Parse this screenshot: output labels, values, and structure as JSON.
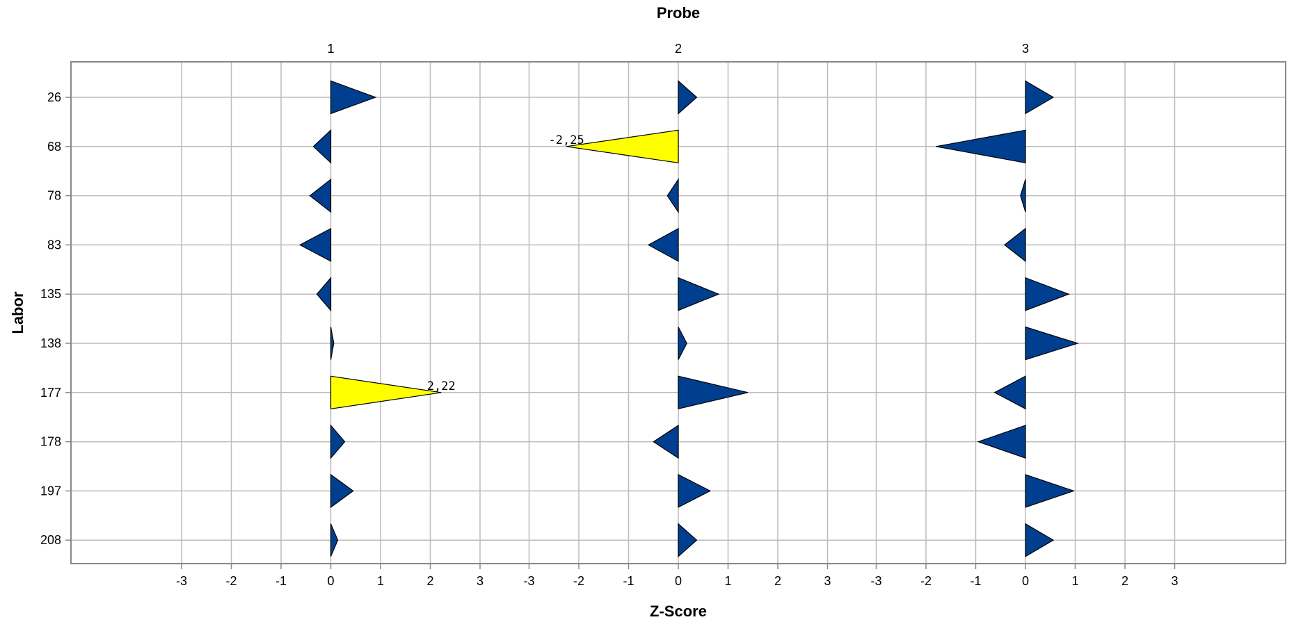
{
  "chart_data": {
    "type": "bar",
    "title": "",
    "top_title": "Probe",
    "xlabel": "Z-Score",
    "ylabel": "Labor",
    "xlim": [
      -3,
      3
    ],
    "x_ticks": [
      "-3",
      "-2",
      "-1",
      "0",
      "1",
      "2",
      "3"
    ],
    "grid": true,
    "categories": [
      "26",
      "68",
      "78",
      "83",
      "135",
      "138",
      "177",
      "178",
      "197",
      "208"
    ],
    "colors": {
      "normal": "#003F8F",
      "highlight": "#FFFF00",
      "grid": "#BBBBBB",
      "frame": "#888888"
    },
    "panels": [
      {
        "name": "1",
        "values": [
          0.9,
          -0.35,
          -0.42,
          -0.62,
          -0.28,
          0.06,
          2.22,
          0.28,
          0.45,
          0.14
        ]
      },
      {
        "name": "2",
        "values": [
          0.37,
          -2.25,
          -0.22,
          -0.6,
          0.81,
          0.17,
          1.4,
          -0.5,
          0.64,
          0.37
        ]
      },
      {
        "name": "3",
        "values": [
          0.56,
          -1.8,
          -0.1,
          -0.42,
          0.87,
          1.05,
          -0.62,
          -0.95,
          0.97,
          0.56
        ]
      }
    ],
    "labels": [
      {
        "panel": "1",
        "category": "177",
        "text": "2,22"
      },
      {
        "panel": "2",
        "category": "68",
        "text": "-2,25"
      }
    ],
    "highlight_threshold": 2
  }
}
